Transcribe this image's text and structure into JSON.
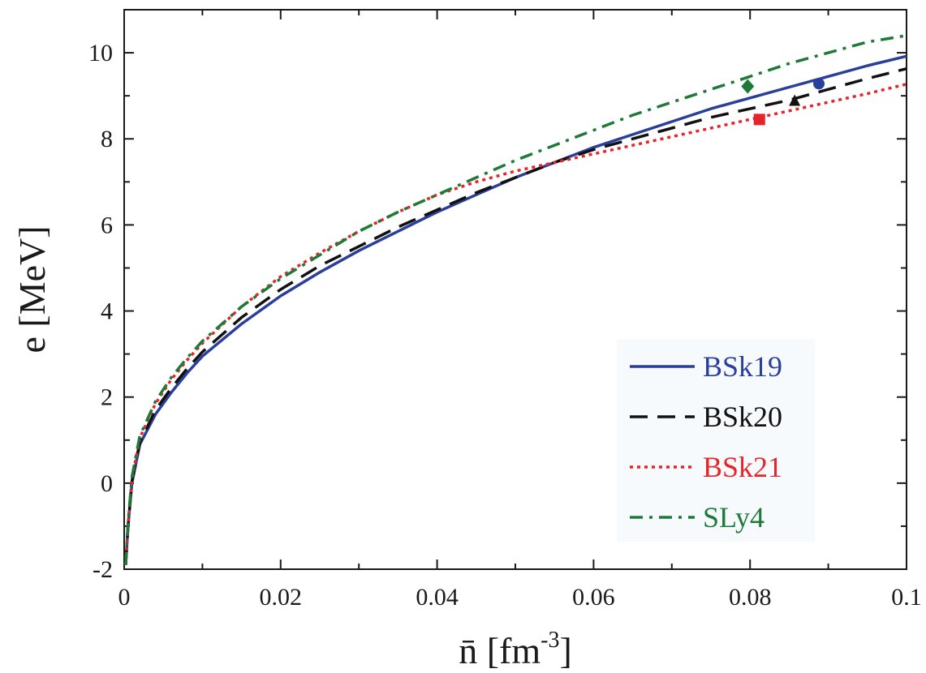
{
  "chart_data": {
    "type": "line",
    "title": "",
    "xlabel": "n̄ [fm",
    "xlabel_sup": "-3",
    "xlabel_suffix": "]",
    "ylabel": "e [MeV]",
    "xlim": [
      0,
      0.1
    ],
    "ylim": [
      -2,
      11
    ],
    "xticks": [
      0,
      0.02,
      0.04,
      0.06,
      0.08,
      0.1
    ],
    "xtick_labels": [
      "0",
      "0.02",
      "0.04",
      "0.06",
      "0.08",
      "0.1"
    ],
    "yticks": [
      -2,
      0,
      2,
      4,
      6,
      8,
      10
    ],
    "ytick_labels": [
      "-2",
      "0",
      "2",
      "4",
      "6",
      "8",
      "10"
    ],
    "grid": false,
    "legend_position": "bottom-right",
    "series": [
      {
        "name": "BSk19",
        "color": "#2a3f9a",
        "dash": "solid",
        "marker": "circle",
        "marker_point": [
          0.0888,
          9.28
        ],
        "x": [
          0.0002,
          0.0005,
          0.001,
          0.002,
          0.004,
          0.006,
          0.008,
          0.01,
          0.015,
          0.02,
          0.025,
          0.03,
          0.035,
          0.04,
          0.045,
          0.05,
          0.055,
          0.06,
          0.065,
          0.07,
          0.075,
          0.08,
          0.085,
          0.09,
          0.095,
          0.1
        ],
        "y": [
          -1.9,
          -1.0,
          0.0,
          0.9,
          1.6,
          2.1,
          2.55,
          2.95,
          3.7,
          4.35,
          4.9,
          5.4,
          5.85,
          6.3,
          6.7,
          7.1,
          7.45,
          7.8,
          8.1,
          8.4,
          8.7,
          8.95,
          9.2,
          9.45,
          9.7,
          9.92
        ]
      },
      {
        "name": "BSk20",
        "color": "#111111",
        "dash": "long-dash",
        "marker": "triangle",
        "marker_point": [
          0.0857,
          8.88
        ],
        "x": [
          0.0002,
          0.0005,
          0.001,
          0.002,
          0.004,
          0.006,
          0.008,
          0.01,
          0.015,
          0.02,
          0.025,
          0.03,
          0.035,
          0.04,
          0.045,
          0.05,
          0.055,
          0.06,
          0.065,
          0.07,
          0.075,
          0.08,
          0.085,
          0.09,
          0.095,
          0.1
        ],
        "y": [
          -1.9,
          -1.0,
          0.05,
          0.95,
          1.7,
          2.2,
          2.65,
          3.05,
          3.85,
          4.5,
          5.05,
          5.5,
          5.95,
          6.35,
          6.75,
          7.1,
          7.45,
          7.75,
          8.0,
          8.25,
          8.5,
          8.7,
          8.9,
          9.15,
          9.4,
          9.63
        ]
      },
      {
        "name": "BSk21",
        "color": "#e8242b",
        "dash": "dotted",
        "marker": "square",
        "marker_point": [
          0.0812,
          8.45
        ],
        "x": [
          0.0002,
          0.0005,
          0.001,
          0.002,
          0.004,
          0.006,
          0.008,
          0.01,
          0.015,
          0.02,
          0.025,
          0.03,
          0.035,
          0.04,
          0.045,
          0.05,
          0.055,
          0.06,
          0.065,
          0.07,
          0.075,
          0.08,
          0.085,
          0.09,
          0.095,
          0.1
        ],
        "y": [
          -1.9,
          -0.95,
          0.1,
          1.05,
          1.85,
          2.4,
          2.85,
          3.25,
          4.1,
          4.8,
          5.35,
          5.85,
          6.3,
          6.7,
          7.0,
          7.25,
          7.45,
          7.65,
          7.85,
          8.05,
          8.25,
          8.45,
          8.65,
          8.85,
          9.05,
          9.27
        ]
      },
      {
        "name": "SLy4",
        "color": "#1f7a3a",
        "dash": "dash-dot",
        "marker": "diamond",
        "marker_point": [
          0.0797,
          9.22
        ],
        "x": [
          0.0002,
          0.0005,
          0.001,
          0.002,
          0.004,
          0.006,
          0.008,
          0.01,
          0.015,
          0.02,
          0.025,
          0.03,
          0.035,
          0.04,
          0.045,
          0.05,
          0.055,
          0.06,
          0.065,
          0.07,
          0.075,
          0.08,
          0.085,
          0.09,
          0.095,
          0.1
        ],
        "y": [
          -1.9,
          -0.9,
          0.15,
          1.1,
          1.9,
          2.45,
          2.9,
          3.3,
          4.1,
          4.75,
          5.3,
          5.85,
          6.3,
          6.7,
          7.1,
          7.5,
          7.85,
          8.2,
          8.55,
          8.85,
          9.15,
          9.45,
          9.75,
          10.0,
          10.25,
          10.4
        ]
      }
    ]
  }
}
